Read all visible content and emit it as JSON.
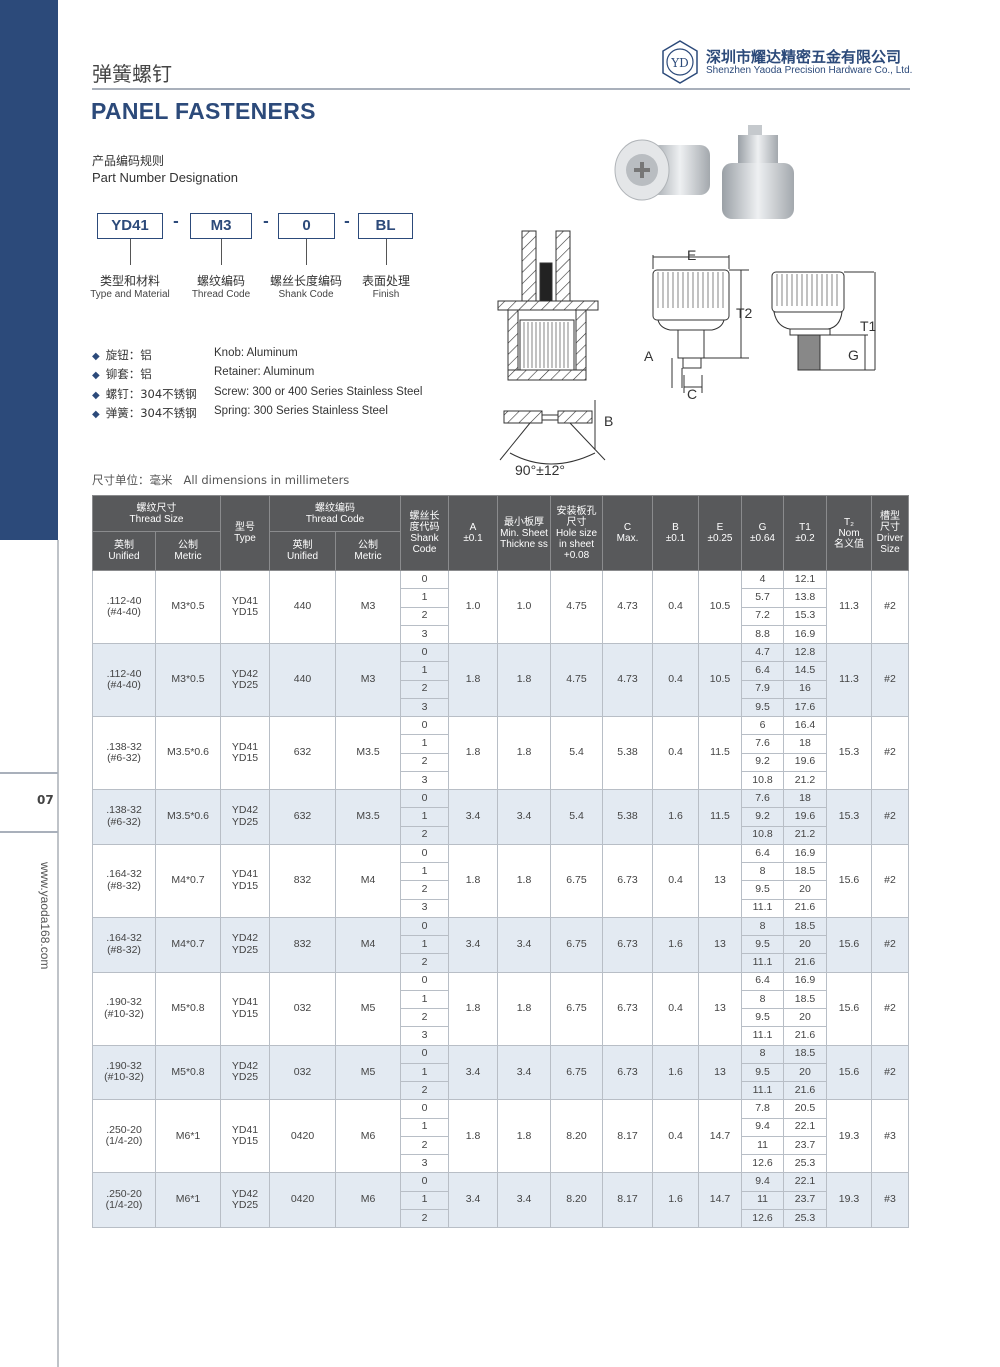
{
  "header": {
    "title_cn": "弹簧螺钉",
    "title_en": "PANEL FASTENERS",
    "logo_text": "YD",
    "company_cn": "深圳市耀达精密五金有限公司",
    "company_en": "Shenzhen Yaoda Precision Hardware Co., Ltd."
  },
  "designation": {
    "title_cn": "产品编码规则",
    "title_en": "Part Number Designation",
    "codes": [
      {
        "code": "YD41",
        "label_cn": "类型和材料",
        "label_en": "Type and Material"
      },
      {
        "code": "M3",
        "label_cn": "螺纹编码",
        "label_en": "Thread Code"
      },
      {
        "code": "0",
        "label_cn": "螺丝长度编码",
        "label_en": "Shank Code"
      },
      {
        "code": "BL",
        "label_cn": "表面处理",
        "label_en": "Finish"
      }
    ],
    "separator": "-"
  },
  "materials": [
    {
      "cn": "旋钮：铝",
      "en": "Knob: Aluminum"
    },
    {
      "cn": "铆套：铝",
      "en": "Retainer: Aluminum"
    },
    {
      "cn": "螺钉：304不锈钢",
      "en": "Screw: 300 or 400 Series Stainless Steel"
    },
    {
      "cn": "弹簧：304不锈钢",
      "en": "Spring: 300 Series Stainless Steel"
    }
  ],
  "drawing_labels": {
    "E": "E",
    "T2": "T2",
    "T1": "T1",
    "A": "A",
    "C": "C",
    "G": "G",
    "B": "B",
    "angle": "90°±12°"
  },
  "units_note": "尺寸单位：毫米   All dimensions in millimeters",
  "table": {
    "headers": {
      "thread_size": "螺纹尺寸\nThread Size",
      "unified": "英制\nUnified",
      "metric": "公制\nMetric",
      "type": "型号\nType",
      "thread_code": "螺纹编码\nThread Code",
      "shank": "螺丝长\n度代码\nShank\nCode",
      "a": "A\n±0.1",
      "min_sheet": "最小板厚\nMin. Sheet\nThickne ss",
      "hole": "安装板孔\n尺寸\nHole size\nin sheet\n+0.08",
      "c": "C\nMax.",
      "b": "B\n±0.1",
      "e": "E\n±0.25",
      "g": "G\n±0.64",
      "t1": "T1\n±0.2",
      "t2": "T₂\nNom\n名义值",
      "driver": "槽型\n尺寸\nDriver\nSize"
    },
    "groups": [
      {
        "unified": ".112-40\n(#4-40)",
        "metric": "M3*0.5",
        "type": "YD41\nYD15",
        "code_unified": "440",
        "code_metric": "M3",
        "a": "1.0",
        "min_sheet": "1.0",
        "hole": "4.75",
        "c": "4.73",
        "b": "0.4",
        "e": "10.5",
        "t2": "11.3",
        "driver": "#2",
        "rows": [
          [
            "0",
            "4",
            "12.1"
          ],
          [
            "1",
            "5.7",
            "13.8"
          ],
          [
            "2",
            "7.2",
            "15.3"
          ],
          [
            "3",
            "8.8",
            "16.9"
          ]
        ]
      },
      {
        "unified": ".112-40\n(#4-40)",
        "metric": "M3*0.5",
        "type": "YD42\nYD25",
        "code_unified": "440",
        "code_metric": "M3",
        "a": "1.8",
        "min_sheet": "1.8",
        "hole": "4.75",
        "c": "4.73",
        "b": "0.4",
        "e": "10.5",
        "t2": "11.3",
        "driver": "#2",
        "rows": [
          [
            "0",
            "4.7",
            "12.8"
          ],
          [
            "1",
            "6.4",
            "14.5"
          ],
          [
            "2",
            "7.9",
            "16"
          ],
          [
            "3",
            "9.5",
            "17.6"
          ]
        ]
      },
      {
        "unified": ".138-32\n(#6-32)",
        "metric": "M3.5*0.6",
        "type": "YD41\nYD15",
        "code_unified": "632",
        "code_metric": "M3.5",
        "a": "1.8",
        "min_sheet": "1.8",
        "hole": "5.4",
        "c": "5.38",
        "b": "0.4",
        "e": "11.5",
        "t2": "15.3",
        "driver": "#2",
        "rows": [
          [
            "0",
            "6",
            "16.4"
          ],
          [
            "1",
            "7.6",
            "18"
          ],
          [
            "2",
            "9.2",
            "19.6"
          ],
          [
            "3",
            "10.8",
            "21.2"
          ]
        ]
      },
      {
        "unified": ".138-32\n(#6-32)",
        "metric": "M3.5*0.6",
        "type": "YD42\nYD25",
        "code_unified": "632",
        "code_metric": "M3.5",
        "a": "3.4",
        "min_sheet": "3.4",
        "hole": "5.4",
        "c": "5.38",
        "b": "1.6",
        "e": "11.5",
        "t2": "15.3",
        "driver": "#2",
        "rows": [
          [
            "0",
            "7.6",
            "18"
          ],
          [
            "1",
            "9.2",
            "19.6"
          ],
          [
            "2",
            "10.8",
            "21.2"
          ]
        ]
      },
      {
        "unified": ".164-32\n(#8-32)",
        "metric": "M4*0.7",
        "type": "YD41\nYD15",
        "code_unified": "832",
        "code_metric": "M4",
        "a": "1.8",
        "min_sheet": "1.8",
        "hole": "6.75",
        "c": "6.73",
        "b": "0.4",
        "e": "13",
        "t2": "15.6",
        "driver": "#2",
        "rows": [
          [
            "0",
            "6.4",
            "16.9"
          ],
          [
            "1",
            "8",
            "18.5"
          ],
          [
            "2",
            "9.5",
            "20"
          ],
          [
            "3",
            "11.1",
            "21.6"
          ]
        ]
      },
      {
        "unified": ".164-32\n(#8-32)",
        "metric": "M4*0.7",
        "type": "YD42\nYD25",
        "code_unified": "832",
        "code_metric": "M4",
        "a": "3.4",
        "min_sheet": "3.4",
        "hole": "6.75",
        "c": "6.73",
        "b": "1.6",
        "e": "13",
        "t2": "15.6",
        "driver": "#2",
        "rows": [
          [
            "0",
            "8",
            "18.5"
          ],
          [
            "1",
            "9.5",
            "20"
          ],
          [
            "2",
            "11.1",
            "21.6"
          ]
        ]
      },
      {
        "unified": ".190-32\n(#10-32)",
        "metric": "M5*0.8",
        "type": "YD41\nYD15",
        "code_unified": "032",
        "code_metric": "M5",
        "a": "1.8",
        "min_sheet": "1.8",
        "hole": "6.75",
        "c": "6.73",
        "b": "0.4",
        "e": "13",
        "t2": "15.6",
        "driver": "#2",
        "rows": [
          [
            "0",
            "6.4",
            "16.9"
          ],
          [
            "1",
            "8",
            "18.5"
          ],
          [
            "2",
            "9.5",
            "20"
          ],
          [
            "3",
            "11.1",
            "21.6"
          ]
        ]
      },
      {
        "unified": ".190-32\n(#10-32)",
        "metric": "M5*0.8",
        "type": "YD42\nYD25",
        "code_unified": "032",
        "code_metric": "M5",
        "a": "3.4",
        "min_sheet": "3.4",
        "hole": "6.75",
        "c": "6.73",
        "b": "1.6",
        "e": "13",
        "t2": "15.6",
        "driver": "#2",
        "rows": [
          [
            "0",
            "8",
            "18.5"
          ],
          [
            "1",
            "9.5",
            "20"
          ],
          [
            "2",
            "11.1",
            "21.6"
          ]
        ]
      },
      {
        "unified": ".250-20\n(1/4-20)",
        "metric": "M6*1",
        "type": "YD41\nYD15",
        "code_unified": "0420",
        "code_metric": "M6",
        "a": "1.8",
        "min_sheet": "1.8",
        "hole": "8.20",
        "c": "8.17",
        "b": "0.4",
        "e": "14.7",
        "t2": "19.3",
        "driver": "#3",
        "rows": [
          [
            "0",
            "7.8",
            "20.5"
          ],
          [
            "1",
            "9.4",
            "22.1"
          ],
          [
            "2",
            "11",
            "23.7"
          ],
          [
            "3",
            "12.6",
            "25.3"
          ]
        ]
      },
      {
        "unified": ".250-20\n(1/4-20)",
        "metric": "M6*1",
        "type": "YD42\nYD25",
        "code_unified": "0420",
        "code_metric": "M6",
        "a": "3.4",
        "min_sheet": "3.4",
        "hole": "8.20",
        "c": "8.17",
        "b": "1.6",
        "e": "14.7",
        "t2": "19.3",
        "driver": "#3",
        "rows": [
          [
            "0",
            "9.4",
            "22.1"
          ],
          [
            "1",
            "11",
            "23.7"
          ],
          [
            "2",
            "12.6",
            "25.3"
          ]
        ]
      }
    ]
  },
  "footer": {
    "page_number": "07",
    "website": "www.yaoda168.com"
  },
  "colors": {
    "brand": "#2c4a7a",
    "header_bg": "#58595b",
    "alt_row": "#e3eaf2"
  }
}
